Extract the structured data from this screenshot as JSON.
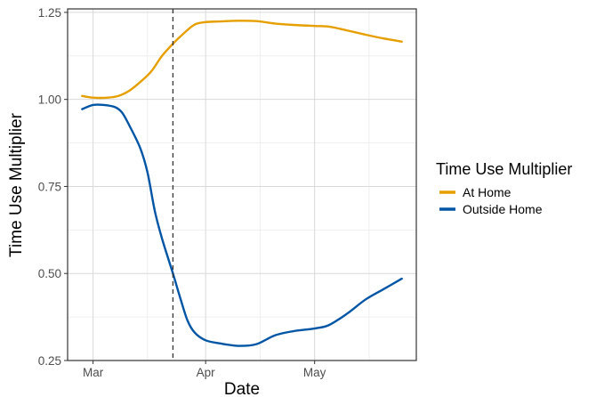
{
  "chart_data": {
    "type": "line",
    "title": "",
    "xlabel": "Date",
    "ylabel": "Time Use Multiplier",
    "x_axis": {
      "start": "2020-02-23",
      "end": "2020-05-29",
      "tick_dates": [
        "2020-03-01",
        "2020-04-01",
        "2020-05-01"
      ],
      "tick_labels": [
        "Mar",
        "Apr",
        "May"
      ],
      "minor_dates": [
        "2020-03-16",
        "2020-04-16",
        "2020-05-16"
      ]
    },
    "ylim": [
      0.25,
      1.26
    ],
    "yticks": [
      0.25,
      0.5,
      0.75,
      1.0,
      1.25
    ],
    "ytick_labels": [
      "0.25",
      "0.50",
      "0.75",
      "1.00",
      "1.25"
    ],
    "y_minor": [
      0.375,
      0.625,
      0.875,
      1.125
    ],
    "grid": true,
    "vline": {
      "date": "2020-03-23",
      "style": "dashed"
    },
    "legend": {
      "title": "Time Use Multiplier",
      "position": "right"
    },
    "series": [
      {
        "name": "At Home",
        "color": "#E69F00",
        "points": [
          [
            "2020-02-27",
            1.01
          ],
          [
            "2020-03-01",
            1.005
          ],
          [
            "2020-03-05",
            1.005
          ],
          [
            "2020-03-08",
            1.01
          ],
          [
            "2020-03-11",
            1.025
          ],
          [
            "2020-03-14",
            1.05
          ],
          [
            "2020-03-17",
            1.08
          ],
          [
            "2020-03-20",
            1.125
          ],
          [
            "2020-03-23",
            1.16
          ],
          [
            "2020-03-26",
            1.19
          ],
          [
            "2020-03-29",
            1.215
          ],
          [
            "2020-04-01",
            1.222
          ],
          [
            "2020-04-05",
            1.224
          ],
          [
            "2020-04-10",
            1.226
          ],
          [
            "2020-04-15",
            1.225
          ],
          [
            "2020-04-20",
            1.218
          ],
          [
            "2020-04-25",
            1.214
          ],
          [
            "2020-05-01",
            1.211
          ],
          [
            "2020-05-05",
            1.209
          ],
          [
            "2020-05-10",
            1.198
          ],
          [
            "2020-05-15",
            1.186
          ],
          [
            "2020-05-20",
            1.175
          ],
          [
            "2020-05-25",
            1.166
          ]
        ]
      },
      {
        "name": "Outside Home",
        "color": "#0055A4",
        "points": [
          [
            "2020-02-27",
            0.972
          ],
          [
            "2020-03-01",
            0.984
          ],
          [
            "2020-03-04",
            0.984
          ],
          [
            "2020-03-07",
            0.978
          ],
          [
            "2020-03-09",
            0.962
          ],
          [
            "2020-03-11",
            0.925
          ],
          [
            "2020-03-14",
            0.86
          ],
          [
            "2020-03-16",
            0.79
          ],
          [
            "2020-03-18",
            0.68
          ],
          [
            "2020-03-20",
            0.6
          ],
          [
            "2020-03-23",
            0.5
          ],
          [
            "2020-03-25",
            0.43
          ],
          [
            "2020-03-27",
            0.365
          ],
          [
            "2020-03-29",
            0.33
          ],
          [
            "2020-04-01",
            0.308
          ],
          [
            "2020-04-05",
            0.299
          ],
          [
            "2020-04-10",
            0.292
          ],
          [
            "2020-04-15",
            0.297
          ],
          [
            "2020-04-20",
            0.322
          ],
          [
            "2020-04-25",
            0.334
          ],
          [
            "2020-05-01",
            0.342
          ],
          [
            "2020-05-05",
            0.352
          ],
          [
            "2020-05-10",
            0.385
          ],
          [
            "2020-05-15",
            0.425
          ],
          [
            "2020-05-20",
            0.455
          ],
          [
            "2020-05-25",
            0.485
          ]
        ]
      }
    ]
  }
}
